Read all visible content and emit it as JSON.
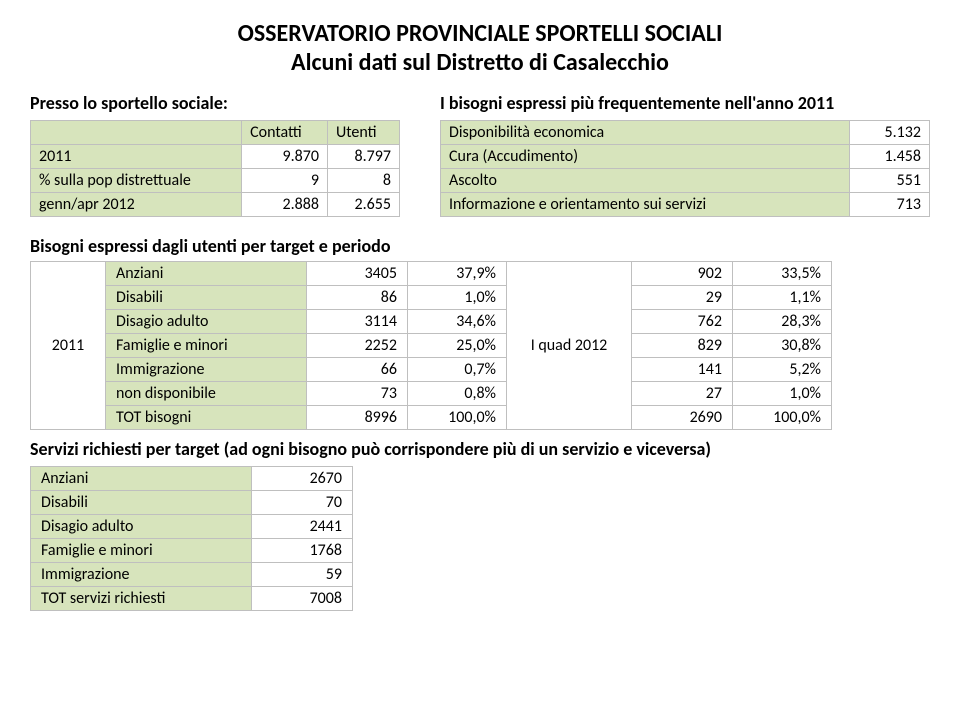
{
  "title_line1": "OSSERVATORIO PROVINCIALE SPORTELLI SOCIALI",
  "title_line2": "Alcuni dati sul Distretto di Casalecchio",
  "left": {
    "heading": "Presso lo sportello sociale:",
    "headers": {
      "c1": "Contatti",
      "c2": "Utenti"
    },
    "rows": [
      {
        "label": "2011",
        "v1": "9.870",
        "v2": "8.797"
      },
      {
        "label": "% sulla pop distrettuale",
        "v1": "9",
        "v2": "8"
      },
      {
        "label": "genn/apr 2012",
        "v1": "2.888",
        "v2": "2.655"
      }
    ]
  },
  "right": {
    "heading": "I bisogni espressi più frequentemente nell'anno 2011",
    "rows": [
      {
        "label": "Disponibilità economica",
        "v": "5.132"
      },
      {
        "label": "Cura (Accudimento)",
        "v": "1.458"
      },
      {
        "label": "Ascolto",
        "v": "551"
      },
      {
        "label": "Informazione e orientamento sui servizi",
        "v": "713"
      }
    ]
  },
  "target": {
    "heading": "Bisogni espressi dagli utenti  per target e periodo",
    "year_left": "2011",
    "year_mid": "I quad 2012",
    "rows": [
      {
        "label": "Anziani",
        "v1": "3405",
        "p1": "37,9%",
        "v2": "902",
        "p2": "33,5%"
      },
      {
        "label": "Disabili",
        "v1": "86",
        "p1": "1,0%",
        "v2": "29",
        "p2": "1,1%"
      },
      {
        "label": "Disagio adulto",
        "v1": "3114",
        "p1": "34,6%",
        "v2": "762",
        "p2": "28,3%"
      },
      {
        "label": "Famiglie e minori",
        "v1": "2252",
        "p1": "25,0%",
        "v2": "829",
        "p2": "30,8%"
      },
      {
        "label": "Immigrazione",
        "v1": "66",
        "p1": "0,7%",
        "v2": "141",
        "p2": "5,2%"
      },
      {
        "label": "non disponibile",
        "v1": "73",
        "p1": "0,8%",
        "v2": "27",
        "p2": "1,0%"
      },
      {
        "label": "TOT bisogni",
        "v1": "8996",
        "p1": "100,0%",
        "v2": "2690",
        "p2": "100,0%"
      }
    ]
  },
  "servizi": {
    "heading": "Servizi richiesti per target (ad ogni bisogno può corrispondere più di un servizio e viceversa)",
    "rows": [
      {
        "label": "Anziani",
        "v": "2670"
      },
      {
        "label": "Disabili",
        "v": "70"
      },
      {
        "label": "Disagio adulto",
        "v": "2441"
      },
      {
        "label": "Famiglie e minori",
        "v": "1768"
      },
      {
        "label": "Immigrazione",
        "v": "59"
      },
      {
        "label": "TOT servizi richiesti",
        "v": "7008"
      }
    ]
  },
  "colors": {
    "header_bg": "#d7e4bc",
    "border": "#bfbfbf",
    "text": "#000000",
    "background": "#ffffff"
  }
}
